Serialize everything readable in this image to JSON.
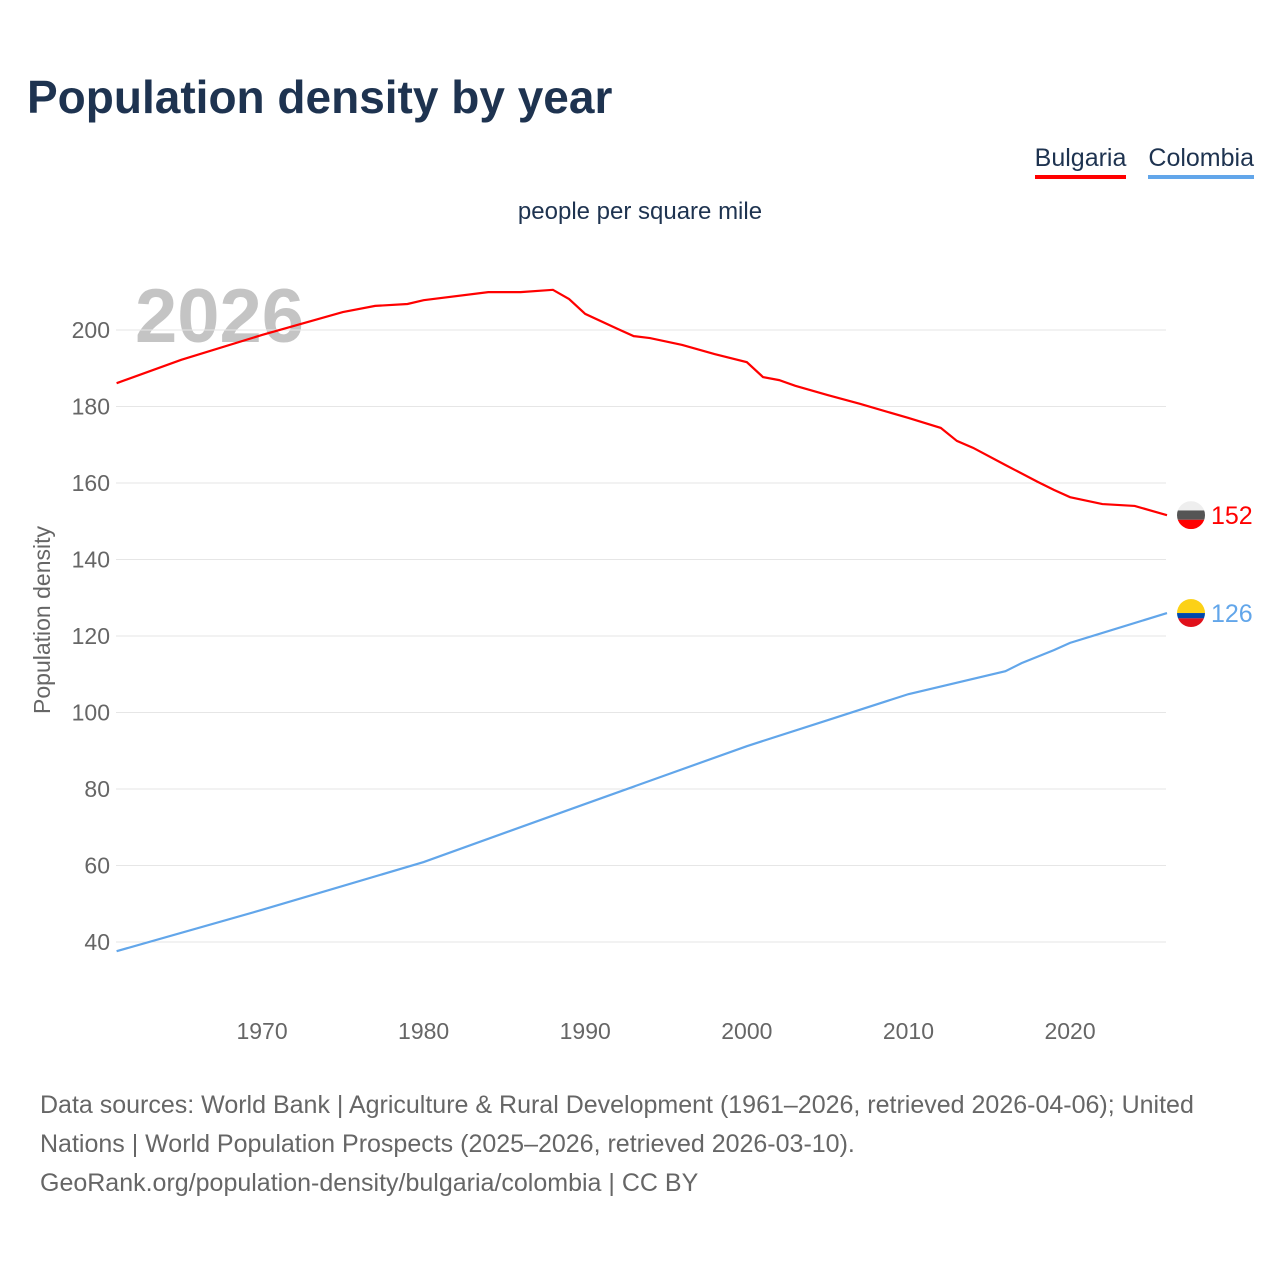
{
  "title": "Population density by year",
  "subtitle": "people per square mile",
  "watermark_year": "2026",
  "source_lines": [
    "Data sources: World Bank | Agriculture & Rural Development (1961–2026, retrieved 2026-04-06); United Nations | World Population Prospects (2025–2026, retrieved 2026-03-10).",
    "GeoRank.org/population-density/bulgaria/colombia | CC BY"
  ],
  "chart_data": {
    "type": "line",
    "title": "Population density by year",
    "ylabel": "Population density",
    "xlabel": "",
    "xlim": [
      1961,
      2026
    ],
    "ylim": [
      30,
      215
    ],
    "xticks": [
      1970,
      1980,
      1990,
      2000,
      2010,
      2020
    ],
    "yticks": [
      40,
      60,
      80,
      100,
      120,
      140,
      160,
      180,
      200
    ],
    "grid": true,
    "legend_placement": "top-right",
    "series": [
      {
        "name": "Bulgaria",
        "color": "#ff0000",
        "end_label": "152",
        "flag": [
          "#eeeeee",
          "#555555",
          "#ff0000"
        ],
        "points": [
          [
            1961,
            186.1
          ],
          [
            1965,
            192.2
          ],
          [
            1970,
            198.7
          ],
          [
            1975,
            204.7
          ],
          [
            1977,
            206.3
          ],
          [
            1979,
            206.8
          ],
          [
            1980,
            207.8
          ],
          [
            1984,
            209.9
          ],
          [
            1986,
            209.9
          ],
          [
            1988,
            210.5
          ],
          [
            1989,
            208.1
          ],
          [
            1990,
            204.2
          ],
          [
            1992,
            200.3
          ],
          [
            1993,
            198.4
          ],
          [
            1994,
            197.9
          ],
          [
            1996,
            196.1
          ],
          [
            1998,
            193.7
          ],
          [
            2000,
            191.6
          ],
          [
            2001,
            187.7
          ],
          [
            2002,
            186.9
          ],
          [
            2003,
            185.4
          ],
          [
            2005,
            183.0
          ],
          [
            2007,
            180.7
          ],
          [
            2010,
            177.0
          ],
          [
            2012,
            174.4
          ],
          [
            2013,
            171.0
          ],
          [
            2014,
            169.2
          ],
          [
            2016,
            164.7
          ],
          [
            2018,
            160.3
          ],
          [
            2019,
            158.2
          ],
          [
            2020,
            156.3
          ],
          [
            2022,
            154.5
          ],
          [
            2024,
            154.0
          ],
          [
            2026,
            151.6
          ]
        ]
      },
      {
        "name": "Colombia",
        "color": "#62a6ea",
        "end_label": "126",
        "flag": [
          "#fcd116",
          "#0047ab",
          "#e0101a"
        ],
        "points": [
          [
            1961,
            37.6
          ],
          [
            1970,
            48.4
          ],
          [
            1980,
            60.9
          ],
          [
            1990,
            76.1
          ],
          [
            2000,
            91.2
          ],
          [
            2005,
            98.0
          ],
          [
            2010,
            104.8
          ],
          [
            2016,
            110.8
          ],
          [
            2017,
            112.9
          ],
          [
            2019,
            116.3
          ],
          [
            2020,
            118.2
          ],
          [
            2026,
            126.0
          ]
        ]
      }
    ]
  }
}
